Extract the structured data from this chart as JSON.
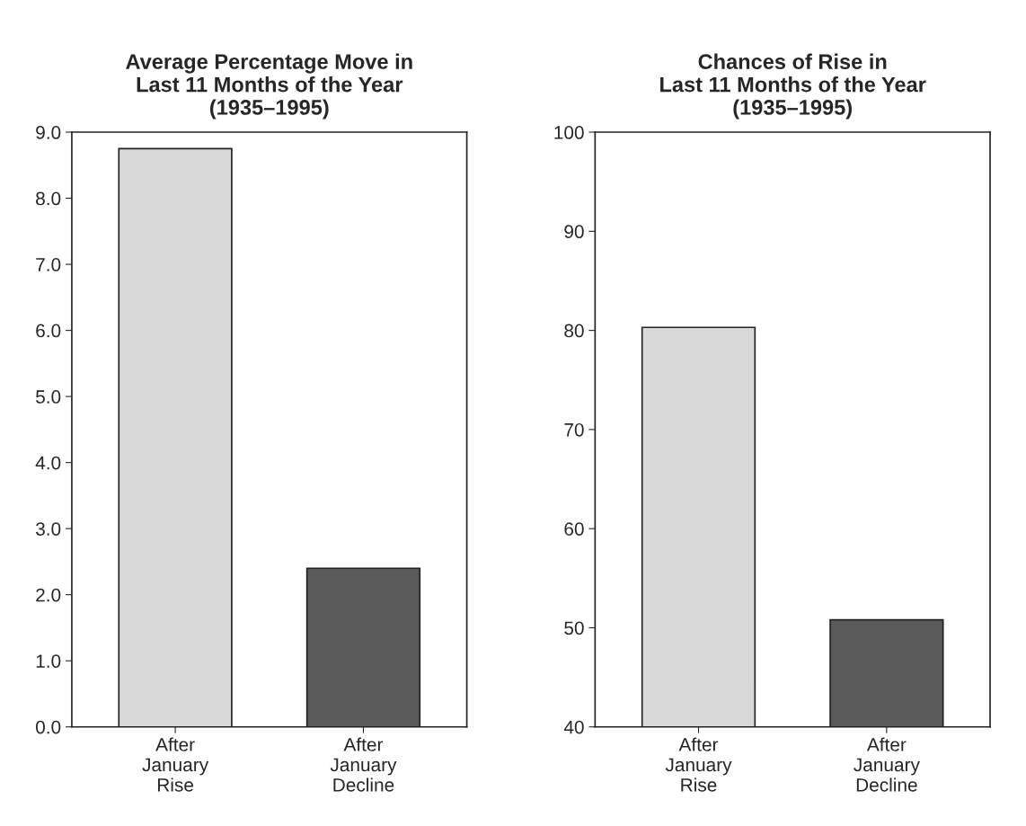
{
  "chart_data": [
    {
      "type": "bar",
      "title": "Average Percentage Move in\nLast 11 Months of the Year\n(1935–1995)",
      "categories": [
        "After\nJanuary\nRise",
        "After\nJanuary\nDecline"
      ],
      "values": [
        8.75,
        2.4
      ],
      "colors": [
        "#d9d9d9",
        "#5a5a5a"
      ],
      "ylim": [
        0,
        9
      ],
      "yticks": [
        {
          "value": 0,
          "label": "0.0"
        },
        {
          "value": 1,
          "label": "1.0"
        },
        {
          "value": 2,
          "label": "2.0"
        },
        {
          "value": 3,
          "label": "3.0"
        },
        {
          "value": 4,
          "label": "4.0"
        },
        {
          "value": 5,
          "label": "5.0"
        },
        {
          "value": 6,
          "label": "6.0"
        },
        {
          "value": 7,
          "label": "7.0"
        },
        {
          "value": 8,
          "label": "8.0"
        },
        {
          "value": 9,
          "label": "9.0"
        }
      ],
      "grid": false
    },
    {
      "type": "bar",
      "title": "Chances of Rise in\nLast 11 Months of the Year\n(1935–1995)",
      "categories": [
        "After\nJanuary\nRise",
        "After\nJanuary\nDecline"
      ],
      "values": [
        80.3,
        50.8
      ],
      "colors": [
        "#d9d9d9",
        "#5a5a5a"
      ],
      "ylim": [
        40,
        100
      ],
      "yticks": [
        40,
        50,
        60,
        70,
        80,
        90,
        100
      ],
      "grid": false
    }
  ]
}
